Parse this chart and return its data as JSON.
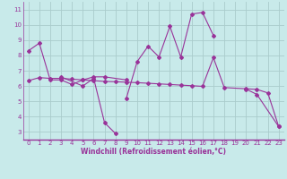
{
  "bg_color": "#c8eaea",
  "line_color": "#993399",
  "grid_color": "#aacccc",
  "xlabel": "Windchill (Refroidissement éolien,°C)",
  "lines": [
    {
      "x": [
        0,
        1,
        2,
        3,
        4,
        5,
        6,
        7,
        9
      ],
      "y": [
        8.3,
        8.8,
        6.4,
        6.4,
        6.1,
        6.4,
        6.6,
        6.6,
        6.4
      ]
    },
    {
      "x": [
        3,
        5,
        6,
        7,
        8
      ],
      "y": [
        6.6,
        6.0,
        6.5,
        3.6,
        2.9
      ]
    },
    {
      "x": [
        9,
        10,
        11,
        12,
        13,
        14,
        15,
        16,
        17
      ],
      "y": [
        5.2,
        7.6,
        8.6,
        7.9,
        9.9,
        7.9,
        10.7,
        10.8,
        9.3
      ]
    },
    {
      "x": [
        0,
        1,
        2,
        3,
        4,
        5,
        6,
        7,
        8,
        9,
        10,
        11,
        12,
        13,
        14,
        15,
        16,
        17,
        18,
        20,
        21,
        22,
        23
      ],
      "y": [
        6.35,
        6.55,
        6.5,
        6.5,
        6.45,
        6.4,
        6.35,
        6.3,
        6.28,
        6.25,
        6.22,
        6.18,
        6.14,
        6.1,
        6.06,
        6.02,
        5.98,
        7.85,
        5.9,
        5.82,
        5.78,
        5.55,
        3.35
      ]
    },
    {
      "x": [
        20,
        21,
        23
      ],
      "y": [
        5.8,
        5.45,
        3.35
      ]
    }
  ],
  "xlim": [
    -0.5,
    23.5
  ],
  "ylim": [
    2.5,
    11.5
  ],
  "yticks": [
    3,
    4,
    5,
    6,
    7,
    8,
    9,
    10,
    11
  ],
  "xticks": [
    0,
    1,
    2,
    3,
    4,
    5,
    6,
    7,
    8,
    9,
    10,
    11,
    12,
    13,
    14,
    15,
    16,
    17,
    18,
    19,
    20,
    21,
    22,
    23
  ],
  "tick_fontsize": 5.0,
  "xlabel_fontsize": 5.5
}
